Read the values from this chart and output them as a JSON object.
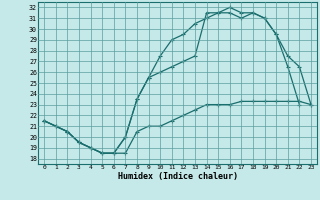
{
  "bg_color": "#c5e8e8",
  "grid_color": "#5a9e9e",
  "line_color": "#1a6e6e",
  "xlabel": "Humidex (Indice chaleur)",
  "xlim": [
    -0.5,
    23.5
  ],
  "ylim": [
    17.5,
    32.5
  ],
  "xticks": [
    0,
    1,
    2,
    3,
    4,
    5,
    6,
    7,
    8,
    9,
    10,
    11,
    12,
    13,
    14,
    15,
    16,
    17,
    18,
    19,
    20,
    21,
    22,
    23
  ],
  "yticks": [
    18,
    19,
    20,
    21,
    22,
    23,
    24,
    25,
    26,
    27,
    28,
    29,
    30,
    31,
    32
  ],
  "line1_x": [
    0,
    1,
    2,
    3,
    4,
    5,
    6,
    7,
    8,
    9,
    10,
    11,
    12,
    13,
    14,
    15,
    16,
    17,
    18,
    19,
    20,
    21,
    22,
    23
  ],
  "line1_y": [
    21.5,
    21.0,
    20.5,
    19.5,
    19.0,
    18.5,
    18.5,
    18.5,
    20.5,
    21.0,
    21.0,
    21.5,
    22.0,
    22.5,
    23.0,
    23.0,
    23.0,
    23.3,
    23.3,
    23.3,
    23.3,
    23.3,
    23.3,
    23.0
  ],
  "line2_x": [
    0,
    1,
    2,
    3,
    4,
    5,
    6,
    7,
    8,
    9,
    10,
    11,
    12,
    13,
    14,
    15,
    16,
    17,
    18,
    19,
    20,
    21,
    22,
    23
  ],
  "line2_y": [
    21.5,
    21.0,
    20.5,
    19.5,
    19.0,
    18.5,
    18.5,
    20.0,
    23.5,
    25.5,
    27.5,
    29.0,
    29.5,
    30.5,
    31.0,
    31.5,
    32.0,
    31.5,
    31.5,
    31.0,
    29.5,
    27.5,
    26.5,
    23.0
  ],
  "line3_x": [
    0,
    1,
    2,
    3,
    4,
    5,
    6,
    7,
    8,
    9,
    10,
    11,
    12,
    13,
    14,
    15,
    16,
    17,
    18,
    19,
    20,
    21,
    22,
    23
  ],
  "line3_y": [
    21.5,
    21.0,
    20.5,
    19.5,
    19.0,
    18.5,
    18.5,
    20.0,
    23.5,
    25.5,
    26.0,
    26.5,
    27.0,
    27.5,
    31.5,
    31.5,
    31.5,
    31.0,
    31.5,
    31.0,
    29.5,
    26.5,
    23.0,
    null
  ]
}
